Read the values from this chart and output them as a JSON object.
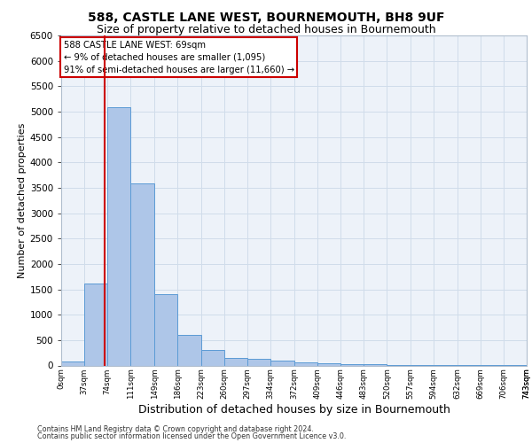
{
  "title1": "588, CASTLE LANE WEST, BOURNEMOUTH, BH8 9UF",
  "title2": "Size of property relative to detached houses in Bournemouth",
  "xlabel": "Distribution of detached houses by size in Bournemouth",
  "ylabel": "Number of detached properties",
  "footer1": "Contains HM Land Registry data © Crown copyright and database right 2024.",
  "footer2": "Contains public sector information licensed under the Open Government Licence v3.0.",
  "bar_edges": [
    0,
    37,
    74,
    111,
    149,
    186,
    223,
    260,
    297,
    334,
    372,
    409,
    446,
    483,
    520,
    557,
    594,
    632,
    669,
    706,
    743
  ],
  "bar_heights": [
    80,
    1620,
    5080,
    3580,
    1400,
    600,
    300,
    155,
    130,
    100,
    60,
    40,
    30,
    20,
    10,
    5,
    5,
    5,
    5,
    5
  ],
  "bar_color": "#aec6e8",
  "bar_edge_color": "#5b9bd5",
  "grid_color": "#d0dcea",
  "red_line_x": 69,
  "annotation_title": "588 CASTLE LANE WEST: 69sqm",
  "annotation_line1": "← 9% of detached houses are smaller (1,095)",
  "annotation_line2": "91% of semi-detached houses are larger (11,660) →",
  "annotation_box_color": "#ffffff",
  "annotation_border_color": "#cc0000",
  "red_line_color": "#cc0000",
  "ylim": [
    0,
    6500
  ],
  "yticks": [
    0,
    500,
    1000,
    1500,
    2000,
    2500,
    3000,
    3500,
    4000,
    4500,
    5000,
    5500,
    6000,
    6500
  ],
  "bg_color": "#edf2f9",
  "title1_fontsize": 10,
  "title2_fontsize": 9,
  "xlabel_fontsize": 9,
  "ylabel_fontsize": 8
}
